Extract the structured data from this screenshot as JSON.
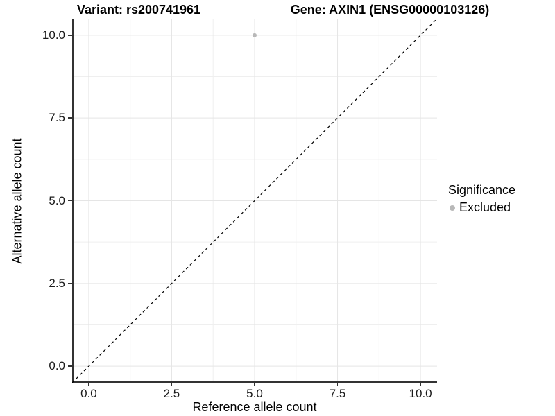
{
  "chart_data": {
    "type": "scatter",
    "titles": {
      "left": "Variant: rs200741961",
      "right": "Gene: AXIN1 (ENSG00000103126)"
    },
    "xlabel": "Reference allele count",
    "ylabel": "Alternative allele count",
    "xlim": [
      -0.5,
      10.5
    ],
    "ylim": [
      -0.5,
      10.5
    ],
    "x_tick_values": [
      0,
      2.5,
      5,
      7.5,
      10
    ],
    "x_tick_labels": [
      "0.0",
      "2.5",
      "5.0",
      "7.5",
      "10.0"
    ],
    "y_tick_values": [
      0,
      2.5,
      5,
      7.5,
      10
    ],
    "y_tick_labels": [
      "0.0",
      "2.5",
      "5.0",
      "7.5",
      "10.0"
    ],
    "minor_grid_values": [
      1.25,
      3.75,
      6.25,
      8.75
    ],
    "grid": true,
    "points": [
      {
        "x": 5,
        "y": 10,
        "significance": "Excluded"
      }
    ],
    "reference_line": {
      "slope": 1,
      "intercept": 0,
      "linetype": "dashed",
      "color": "#000000"
    },
    "legend": {
      "title": "Significance",
      "position": "right",
      "items": [
        {
          "label": "Excluded",
          "color": "#b8b8b8"
        }
      ]
    },
    "colors": {
      "background": "#ffffff",
      "point": "#b8b8b8",
      "grid_major": "#e5e5e5",
      "grid_minor": "#efefef",
      "axis_line": "#333333",
      "tick_mark": "#333333",
      "reference_line": "#000000"
    }
  }
}
